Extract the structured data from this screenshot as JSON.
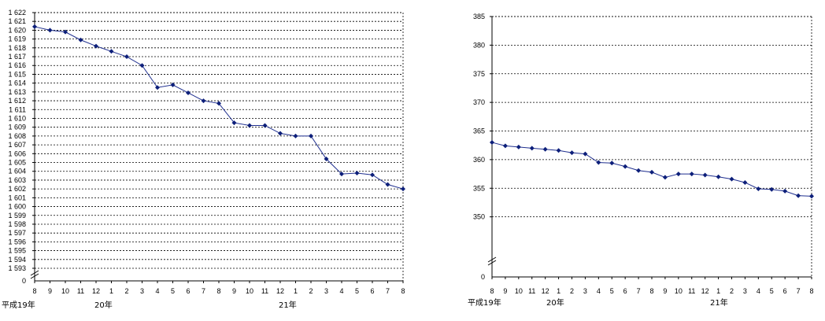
{
  "chart_data": [
    {
      "type": "line",
      "title": "",
      "xlabel": "",
      "ylabel": "",
      "ylim": [
        1593,
        1622
      ],
      "axis_break": true,
      "y_zero_label": "0",
      "y_ticks": [
        "1 622",
        "1 621",
        "1 620",
        "1 619",
        "1 618",
        "1 617",
        "1 616",
        "1 615",
        "1 614",
        "1 613",
        "1 612",
        "1 611",
        "1 610",
        "1 609",
        "1 608",
        "1 607",
        "1 606",
        "1 605",
        "1 604",
        "1 603",
        "1 602",
        "1 601",
        "1 600",
        "1 599",
        "1 598",
        "1 597",
        "1 596",
        "1 595",
        "1 594",
        "1 593"
      ],
      "y_tick_values": [
        1622,
        1621,
        1620,
        1619,
        1618,
        1617,
        1616,
        1615,
        1614,
        1613,
        1612,
        1611,
        1610,
        1609,
        1608,
        1607,
        1606,
        1605,
        1604,
        1603,
        1602,
        1601,
        1600,
        1599,
        1598,
        1597,
        1596,
        1595,
        1594,
        1593
      ],
      "categories": [
        "8",
        "9",
        "10",
        "11",
        "12",
        "1",
        "2",
        "3",
        "4",
        "5",
        "6",
        "7",
        "8",
        "9",
        "10",
        "11",
        "12",
        "1",
        "2",
        "3",
        "4",
        "5",
        "6",
        "7",
        "8"
      ],
      "values": [
        1620.4,
        1620.0,
        1619.8,
        1618.9,
        1618.2,
        1617.6,
        1617.0,
        1616.0,
        1613.5,
        1613.8,
        1612.9,
        1612.0,
        1611.7,
        1609.5,
        1609.2,
        1609.2,
        1608.3,
        1608.0,
        1608.0,
        1605.4,
        1603.7,
        1603.8,
        1603.6,
        1602.5,
        1602.0
      ],
      "era_labels": [
        {
          "text": "平成19年",
          "at": 0
        },
        {
          "text": "20年",
          "at": 4.5
        },
        {
          "text": "21年",
          "at": 16.5
        }
      ],
      "grid": true,
      "line_color": "#1f2f8f",
      "marker_color": "#0d1f7a"
    },
    {
      "type": "line",
      "title": "",
      "xlabel": "",
      "ylabel": "",
      "ylim": [
        345,
        385
      ],
      "axis_break": true,
      "y_zero_label": "0",
      "y_ticks": [
        "385",
        "380",
        "375",
        "370",
        "365",
        "360",
        "355",
        "350"
      ],
      "y_tick_values": [
        385,
        380,
        375,
        370,
        365,
        360,
        355,
        350
      ],
      "categories": [
        "8",
        "9",
        "10",
        "11",
        "12",
        "1",
        "2",
        "3",
        "4",
        "5",
        "6",
        "7",
        "8",
        "9",
        "10",
        "11",
        "12",
        "1",
        "2",
        "3",
        "4",
        "5",
        "6",
        "7",
        "8"
      ],
      "values": [
        363.0,
        362.4,
        362.2,
        362.0,
        361.8,
        361.6,
        361.2,
        361.0,
        359.5,
        359.4,
        358.8,
        358.1,
        357.8,
        356.9,
        357.5,
        357.5,
        357.3,
        357.0,
        356.6,
        356.0,
        354.9,
        354.8,
        354.5,
        353.7,
        353.6
      ],
      "era_labels": [
        {
          "text": "平成19年",
          "at": 0
        },
        {
          "text": "20年",
          "at": 4.5
        },
        {
          "text": "21年",
          "at": 16.5
        }
      ],
      "grid": true,
      "line_color": "#1f2f8f",
      "marker_color": "#0d1f7a"
    }
  ]
}
